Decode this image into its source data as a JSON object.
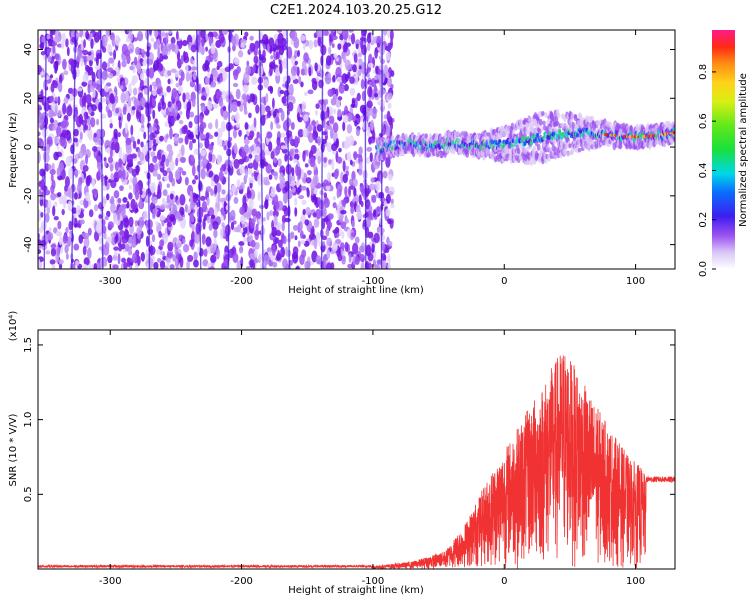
{
  "title": "C2E1.2024.103.20.25.G12",
  "chart_data": [
    {
      "type": "heatmap",
      "xlabel": "Height of straight line (km)",
      "ylabel": "Frequency (Hz)",
      "xlim": [
        -355,
        130
      ],
      "ylim": [
        -50,
        48
      ],
      "x_ticks": [
        -300,
        -200,
        -100,
        0,
        100
      ],
      "y_ticks": [
        -40,
        -20,
        0,
        20,
        40
      ],
      "colorbar": {
        "label": "Normalized spectral amplitude",
        "range": [
          0,
          0.97
        ],
        "ticks": [
          "0.0",
          "0.2",
          "0.4",
          "0.6",
          "0.8"
        ],
        "tick_values": [
          0,
          0.2,
          0.4,
          0.6,
          0.8
        ]
      },
      "colors": {
        "noise": "#7b1fe6",
        "low": "#d8c2f7",
        "mid": "#2ad27a",
        "high": "#ff1a1a"
      },
      "grid": false
    },
    {
      "type": "line",
      "xlabel": "Height of straight line (km)",
      "ylabel": "SNR (10 * V/V)",
      "y_multiplier": "(x10⁴)",
      "xlim": [
        -355,
        130
      ],
      "ylim": [
        0,
        1.6
      ],
      "x_ticks": [
        -300,
        -200,
        -100,
        0,
        100
      ],
      "y_ticks": [
        0.5,
        1.0,
        1.5
      ],
      "y_tick_labels": [
        "0.5",
        "1.0",
        "1.5"
      ],
      "color": "#f03232",
      "envelope": {
        "x": [
          -355,
          -100,
          -70,
          -45,
          -30,
          -10,
          10,
          30,
          45,
          60,
          80,
          95,
          105,
          108,
          130
        ],
        "y": [
          0.02,
          0.02,
          0.05,
          0.12,
          0.3,
          0.65,
          0.95,
          1.25,
          1.5,
          1.25,
          0.95,
          0.75,
          0.68,
          0.6,
          0.6
        ]
      },
      "grid": false
    }
  ]
}
